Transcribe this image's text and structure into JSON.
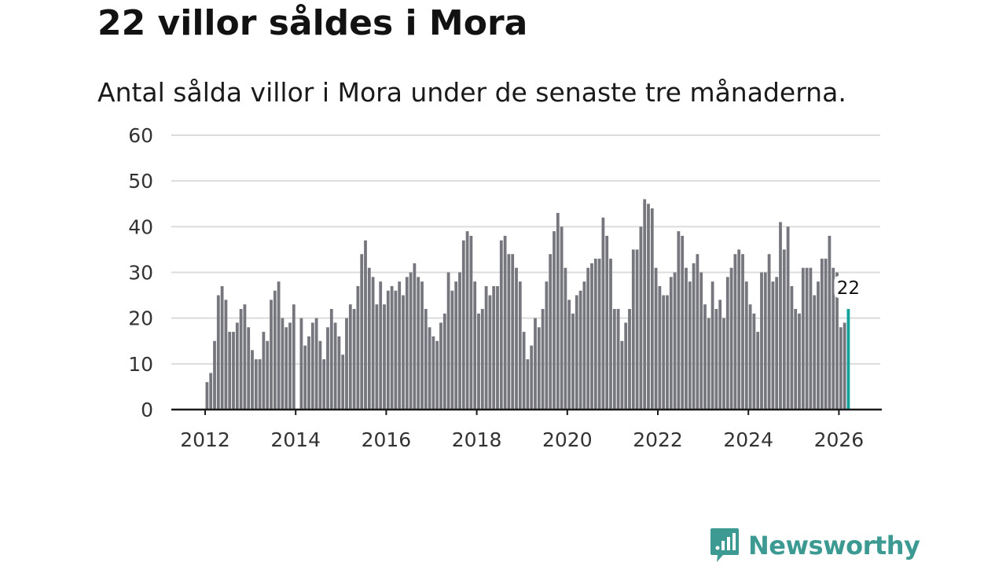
{
  "title": "22 villor såldes i Mora",
  "subtitle": "Antal sålda villor i Mora under de senaste tre månaderna.",
  "brand": {
    "name": "Newsworthy"
  },
  "colors": {
    "bar": "#76767e",
    "highlight": "#13a39c",
    "grid": "#dcdcdc",
    "axis": "#1a1a1a",
    "brand": "#3d9a92"
  },
  "chart_data": {
    "type": "bar",
    "title": "22 villor såldes i Mora",
    "subtitle": "Antal sålda villor i Mora under de senaste tre månaderna.",
    "xlabel": "",
    "ylabel": "",
    "ylim": [
      0,
      60
    ],
    "yticks": [
      0,
      10,
      20,
      30,
      40,
      50,
      60
    ],
    "xticks": [
      2012,
      2014,
      2016,
      2018,
      2020,
      2022,
      2024,
      2026
    ],
    "x_start": "2012-01",
    "frequency": "monthly",
    "highlight_label": "22",
    "values": [
      6,
      8,
      15,
      25,
      27,
      24,
      17,
      17,
      19,
      22,
      23,
      18,
      13,
      11,
      11,
      17,
      15,
      24,
      26,
      28,
      20,
      18,
      19,
      23,
      0,
      20,
      14,
      16,
      19,
      20,
      15,
      11,
      18,
      22,
      19,
      16,
      12,
      20,
      23,
      22,
      27,
      34,
      37,
      31,
      29,
      23,
      28,
      23,
      26,
      27,
      26,
      28,
      25,
      29,
      30,
      32,
      29,
      28,
      22,
      18,
      16,
      15,
      19,
      21,
      30,
      26,
      28,
      30,
      37,
      39,
      38,
      28,
      21,
      22,
      27,
      25,
      27,
      27,
      37,
      38,
      34,
      34,
      31,
      28,
      17,
      11,
      14,
      20,
      18,
      22,
      28,
      34,
      39,
      43,
      40,
      31,
      24,
      21,
      25,
      26,
      28,
      31,
      32,
      33,
      33,
      42,
      38,
      33,
      22,
      22,
      15,
      19,
      22,
      35,
      35,
      40,
      46,
      45,
      44,
      31,
      27,
      25,
      25,
      29,
      30,
      39,
      38,
      31,
      28,
      32,
      34,
      30,
      23,
      20,
      28,
      22,
      24,
      20,
      29,
      31,
      34,
      35,
      34,
      28,
      23,
      21,
      17,
      30,
      30,
      34,
      28,
      29,
      41,
      35,
      40,
      27,
      22,
      21,
      31,
      31,
      31,
      25,
      28,
      33,
      33,
      38,
      31,
      30,
      18,
      19,
      22
    ]
  }
}
